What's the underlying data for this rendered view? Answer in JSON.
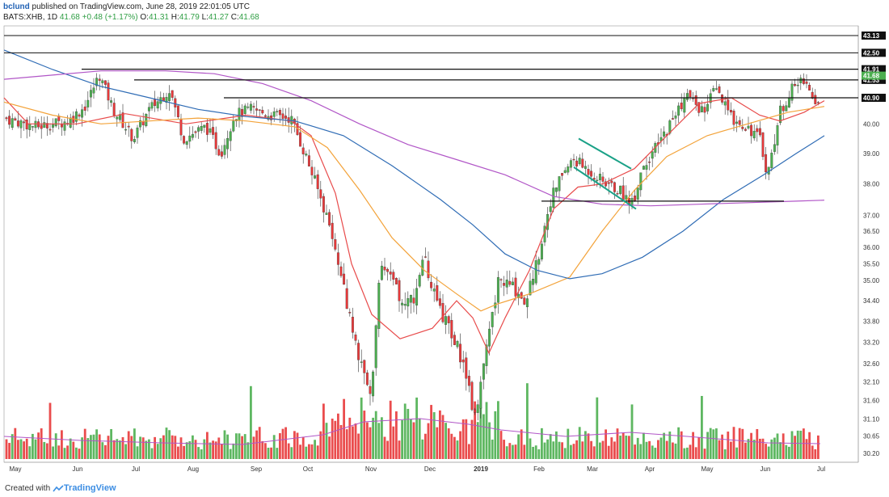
{
  "header": {
    "author": "bclund",
    "published_text": " published on TradingView.com, June 28, 2019 22:01:05 UTC",
    "symbol_line": "BATS:XHB, 1D",
    "last": "41.68",
    "change": "+0.48 (+1.17%)",
    "o_label": "O:",
    "o_value": "41.31",
    "h_label": "H:",
    "h_value": "41.79",
    "l_label": "L:",
    "l_value": "41.27",
    "c_label": "C:",
    "c_value": "41.68"
  },
  "footer": {
    "created_with": "Created with",
    "brand": "TradingView"
  },
  "colors": {
    "up": "#4caf50",
    "down": "#e8393a",
    "ma_red": "#e84b4b",
    "ma_orange": "#f3a33a",
    "ma_blue": "#2f6cb5",
    "ma_purple": "#b156c7",
    "trend_teal": "#1aa187",
    "black": "#111111"
  },
  "chart_data": {
    "type": "candlestick",
    "ticker": "BATS:XHB",
    "interval": "1D",
    "y_axis": {
      "min": 30.0,
      "max": 43.3,
      "scale": "log",
      "tick_labels": [
        "43.13",
        "42.50",
        "41.91",
        "41.68",
        "41.53",
        "40.90",
        "40.00",
        "39.00",
        "38.00",
        "37.00",
        "36.50",
        "36.00",
        "35.50",
        "35.00",
        "34.40",
        "33.80",
        "33.20",
        "32.60",
        "32.10",
        "31.60",
        "31.10",
        "30.65",
        "30.20"
      ],
      "tick_values": [
        43.13,
        42.5,
        41.91,
        41.68,
        41.53,
        40.9,
        40.0,
        39.0,
        38.0,
        37.0,
        36.5,
        36.0,
        35.5,
        35.0,
        34.4,
        33.8,
        33.2,
        32.6,
        32.1,
        31.6,
        31.1,
        30.65,
        30.2
      ]
    },
    "x_axis": {
      "labels": [
        "May",
        "Jun",
        "Jul",
        "Aug",
        "Sep",
        "Oct",
        "Nov",
        "Dec",
        "2019",
        "Feb",
        "Mar",
        "Apr",
        "May",
        "Jun",
        "Jul"
      ],
      "bold_labels": [
        "2019"
      ]
    },
    "price_levels": [
      {
        "value": 43.13,
        "label": "43.13"
      },
      {
        "value": 42.5,
        "label": "42.50"
      },
      {
        "value": 41.91,
        "label": "41.91"
      },
      {
        "value": 41.53,
        "label": "41.53"
      },
      {
        "value": 40.9,
        "label": "40.90"
      }
    ],
    "last_price": {
      "value": 41.68,
      "label": "41.68"
    },
    "horizontal_lines": [
      {
        "value": 41.91,
        "from_month": "Jun",
        "to": "end"
      },
      {
        "value": 41.53,
        "from_month": "Jul",
        "to": "end"
      },
      {
        "value": 40.9,
        "from_month": "Aug",
        "to": "end"
      },
      {
        "value": 37.45,
        "from_month": "Feb",
        "to_month": "Jun"
      }
    ],
    "channel": {
      "upper": [
        {
          "date": "2019-02-22",
          "price": 39.5
        },
        {
          "date": "2019-03-15",
          "price": 38.5
        }
      ],
      "lower": [
        {
          "date": "2019-02-20",
          "price": 38.55
        },
        {
          "date": "2019-03-22",
          "price": 37.2
        }
      ]
    },
    "moving_averages": [
      {
        "color": "red",
        "points": [
          [
            0,
            40.9
          ],
          [
            30,
            40.0
          ],
          [
            90,
            40.0
          ],
          [
            150,
            40.35
          ],
          [
            225,
            40.0
          ],
          [
            300,
            40.3
          ],
          [
            355,
            40.1
          ],
          [
            380,
            39.6
          ],
          [
            410,
            37.7
          ],
          [
            430,
            35.5
          ],
          [
            455,
            34.0
          ],
          [
            490,
            33.3
          ],
          [
            530,
            33.6
          ],
          [
            560,
            34.4
          ],
          [
            580,
            33.9
          ],
          [
            600,
            32.9
          ],
          [
            620,
            33.9
          ],
          [
            650,
            35.3
          ],
          [
            680,
            37.2
          ],
          [
            710,
            37.9
          ],
          [
            740,
            38.0
          ],
          [
            780,
            38.5
          ],
          [
            820,
            39.6
          ],
          [
            860,
            40.7
          ],
          [
            900,
            40.9
          ],
          [
            935,
            40.3
          ],
          [
            960,
            40.1
          ],
          [
            990,
            40.4
          ],
          [
            1015,
            40.8
          ]
        ]
      },
      {
        "color": "orange",
        "points": [
          [
            0,
            40.75
          ],
          [
            60,
            40.3
          ],
          [
            120,
            40.0
          ],
          [
            180,
            40.1
          ],
          [
            240,
            40.2
          ],
          [
            300,
            40.1
          ],
          [
            360,
            39.9
          ],
          [
            400,
            39.2
          ],
          [
            440,
            37.8
          ],
          [
            480,
            36.3
          ],
          [
            520,
            35.3
          ],
          [
            560,
            34.6
          ],
          [
            590,
            34.1
          ],
          [
            610,
            34.3
          ],
          [
            650,
            34.6
          ],
          [
            700,
            35.1
          ],
          [
            740,
            36.5
          ],
          [
            780,
            37.8
          ],
          [
            820,
            38.9
          ],
          [
            870,
            39.6
          ],
          [
            920,
            40.0
          ],
          [
            970,
            40.4
          ],
          [
            1015,
            40.6
          ]
        ]
      },
      {
        "color": "blue",
        "points": [
          [
            0,
            42.6
          ],
          [
            60,
            41.9
          ],
          [
            120,
            41.3
          ],
          [
            180,
            40.9
          ],
          [
            240,
            40.5
          ],
          [
            300,
            40.25
          ],
          [
            360,
            40.1
          ],
          [
            420,
            39.6
          ],
          [
            480,
            38.6
          ],
          [
            540,
            37.5
          ],
          [
            580,
            36.7
          ],
          [
            620,
            35.8
          ],
          [
            660,
            35.3
          ],
          [
            700,
            35.05
          ],
          [
            740,
            35.2
          ],
          [
            790,
            35.7
          ],
          [
            840,
            36.5
          ],
          [
            890,
            37.5
          ],
          [
            940,
            38.3
          ],
          [
            980,
            39.0
          ],
          [
            1015,
            39.6
          ]
        ]
      },
      {
        "color": "purple",
        "points": [
          [
            0,
            41.55
          ],
          [
            60,
            41.7
          ],
          [
            120,
            41.85
          ],
          [
            200,
            41.85
          ],
          [
            260,
            41.75
          ],
          [
            320,
            41.4
          ],
          [
            380,
            40.8
          ],
          [
            440,
            40.0
          ],
          [
            500,
            39.3
          ],
          [
            560,
            38.8
          ],
          [
            620,
            38.3
          ],
          [
            680,
            37.6
          ],
          [
            740,
            37.35
          ],
          [
            800,
            37.3
          ],
          [
            860,
            37.35
          ],
          [
            920,
            37.4
          ],
          [
            980,
            37.45
          ],
          [
            1015,
            37.48
          ]
        ]
      }
    ],
    "candles_summary": {
      "series": "daily OHLC",
      "start": "2018-05",
      "end": "2019-06-28",
      "last": {
        "open": 41.31,
        "high": 41.79,
        "low": 41.27,
        "close": 41.68
      }
    }
  }
}
